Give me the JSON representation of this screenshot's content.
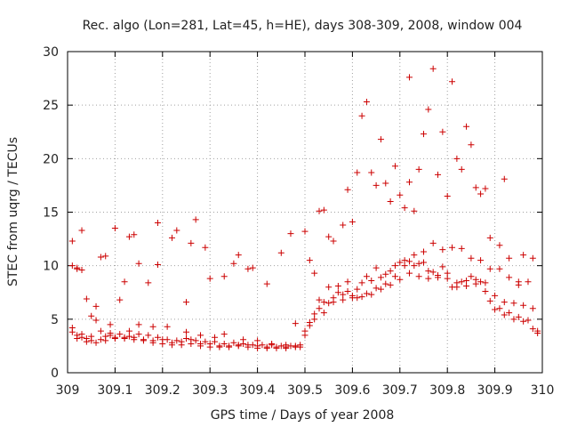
{
  "chart_data": {
    "type": "scatter",
    "title": "Rec. algo (Lon=281, Lat=45, h=HE), days 308-309, 2008, window 004",
    "xlabel": "GPS time / Days of year 2008",
    "ylabel": "STEC from uqrg / TECUs",
    "xlim": [
      309,
      310
    ],
    "ylim": [
      0,
      30
    ],
    "xticks": [
      309,
      309.1,
      309.2,
      309.3,
      309.4,
      309.5,
      309.6,
      309.7,
      309.8,
      309.9,
      310
    ],
    "xtick_labels": [
      "309",
      "309.1",
      "309.2",
      "309.3",
      "309.4",
      "309.5",
      "309.6",
      "309.7",
      "309.8",
      "309.9",
      "310"
    ],
    "yticks": [
      0,
      5,
      10,
      15,
      20,
      25,
      30
    ],
    "ytick_labels": [
      "0",
      "5",
      "10",
      "15",
      "20",
      "25",
      "30"
    ],
    "grid": true,
    "marker": "+",
    "color": "#cc0000",
    "series": [
      {
        "x": [
          309.01,
          309.01,
          309.02,
          309.02,
          309.03,
          309.04,
          309.05,
          309.06,
          309.07,
          309.08,
          309.09,
          309.1,
          309.12,
          309.14,
          309.16,
          309.18,
          309.2,
          309.22,
          309.24,
          309.26,
          309.28,
          309.3,
          309.32,
          309.34,
          309.36,
          309.38,
          309.4,
          309.42,
          309.44,
          309.46,
          309.48,
          309.5,
          309.52,
          309.54,
          309.56,
          309.58,
          309.6,
          309.62,
          309.64,
          309.66,
          309.68,
          309.7,
          309.72,
          309.74,
          309.76,
          309.78,
          309.8,
          309.82,
          309.84,
          309.86,
          309.88,
          309.9,
          309.92,
          309.94,
          309.96,
          309.98,
          309.99,
          309.01,
          309.03,
          309.05,
          309.07,
          309.09,
          309.11,
          309.13,
          309.15,
          309.17,
          309.19,
          309.21,
          309.23,
          309.25,
          309.27,
          309.29,
          309.31,
          309.33,
          309.35,
          309.37,
          309.39,
          309.41,
          309.43,
          309.45,
          309.47,
          309.49,
          309.51,
          309.53,
          309.55,
          309.57,
          309.59,
          309.61,
          309.63,
          309.65,
          309.67,
          309.69,
          309.71,
          309.73,
          309.75,
          309.77,
          309.79,
          309.81,
          309.83,
          309.85,
          309.87,
          309.89,
          309.91,
          309.93,
          309.95,
          309.97,
          309.99,
          309.02,
          309.04,
          309.06,
          309.08,
          309.1,
          309.12,
          309.14,
          309.16,
          309.18,
          309.2,
          309.22,
          309.24,
          309.26,
          309.28,
          309.3,
          309.32,
          309.34,
          309.36,
          309.38,
          309.4,
          309.42,
          309.44,
          309.46,
          309.48,
          309.5,
          309.52,
          309.54,
          309.56,
          309.58,
          309.6,
          309.62,
          309.64,
          309.66,
          309.68,
          309.7,
          309.72,
          309.74,
          309.76,
          309.78,
          309.8,
          309.82,
          309.84,
          309.86,
          309.88,
          309.9,
          309.92,
          309.94,
          309.96,
          309.98,
          309.03,
          309.06,
          309.09,
          309.11,
          309.13,
          309.15,
          309.18,
          309.21,
          309.25,
          309.28,
          309.31,
          309.33,
          309.37,
          309.4,
          309.43,
          309.46,
          309.49,
          309.51,
          309.53,
          309.55,
          309.57,
          309.59,
          309.61,
          309.63,
          309.65,
          309.67,
          309.69,
          309.71,
          309.73,
          309.75,
          309.77,
          309.79,
          309.81,
          309.83,
          309.85,
          309.87,
          309.89,
          309.91,
          309.93,
          309.95,
          309.97,
          309.01,
          309.03,
          309.05,
          309.08,
          309.1,
          309.13,
          309.15,
          309.17,
          309.19,
          309.22,
          309.25,
          309.27,
          309.29,
          309.33,
          309.36,
          309.39,
          309.45,
          309.48,
          309.5,
          309.52,
          309.53,
          309.54,
          309.55,
          309.58,
          309.6,
          309.61,
          309.62,
          309.64,
          309.65,
          309.67,
          309.68,
          309.7,
          309.71,
          309.72,
          309.73,
          309.74,
          309.75,
          309.76,
          309.78,
          309.79,
          309.8,
          309.82,
          309.83,
          309.85,
          309.86,
          309.87,
          309.89,
          309.91,
          309.93,
          309.95,
          309.98,
          309.02,
          309.04,
          309.07,
          309.12,
          309.14,
          309.19,
          309.23,
          309.26,
          309.3,
          309.35,
          309.38,
          309.42,
          309.47,
          309.51,
          309.56,
          309.59,
          309.63,
          309.66,
          309.69,
          309.72,
          309.77,
          309.81,
          309.84,
          309.88,
          309.92,
          309.96
        ],
        "y": [
          3.8,
          12.3,
          9.7,
          3.5,
          13.3,
          3.2,
          3.0,
          6.2,
          3.1,
          3.4,
          3.5,
          3.3,
          3.2,
          3.3,
          3.1,
          2.8,
          2.7,
          2.6,
          2.6,
          2.7,
          2.5,
          2.4,
          2.4,
          2.5,
          2.5,
          2.4,
          2.3,
          2.3,
          2.4,
          2.4,
          2.5,
          3.5,
          5.0,
          5.6,
          6.6,
          6.8,
          7.0,
          7.1,
          7.3,
          7.8,
          8.2,
          8.7,
          9.3,
          9.0,
          8.8,
          8.9,
          9.3,
          8.0,
          8.1,
          8.3,
          7.6,
          5.9,
          5.4,
          5.0,
          4.8,
          4.1,
          3.7,
          4.2,
          3.6,
          3.4,
          3.9,
          4.5,
          3.6,
          3.4,
          3.6,
          3.5,
          3.3,
          3.1,
          3.0,
          3.2,
          3.0,
          2.9,
          2.9,
          2.7,
          2.8,
          2.7,
          2.6,
          2.6,
          2.6,
          2.5,
          2.5,
          2.6,
          4.4,
          6.0,
          6.5,
          7.5,
          7.6,
          7.0,
          7.4,
          7.9,
          8.3,
          9.0,
          10.0,
          10.0,
          10.3,
          9.4,
          9.9,
          8.0,
          8.5,
          9.0,
          8.5,
          6.7,
          6.0,
          5.6,
          5.2,
          4.9,
          3.9,
          3.2,
          2.9,
          2.8,
          3.0,
          3.2,
          3.3,
          3.1,
          3.0,
          3.0,
          3.1,
          2.8,
          2.9,
          3.1,
          2.7,
          2.7,
          2.5,
          2.4,
          2.6,
          2.6,
          2.5,
          2.4,
          2.3,
          2.3,
          2.4,
          3.9,
          5.5,
          6.6,
          7.0,
          7.3,
          7.2,
          8.4,
          8.6,
          8.9,
          9.5,
          10.3,
          10.4,
          10.2,
          9.5,
          9.1,
          8.8,
          8.4,
          8.6,
          8.7,
          8.4,
          7.2,
          6.6,
          6.5,
          6.3,
          6.0,
          3.3,
          4.9,
          3.7,
          6.8,
          3.9,
          4.5,
          4.3,
          4.3,
          3.8,
          3.5,
          3.3,
          3.6,
          3.1,
          3.0,
          2.7,
          2.6,
          2.4,
          4.7,
          6.8,
          8.0,
          8.1,
          8.5,
          7.8,
          9.0,
          9.8,
          9.2,
          10.0,
          10.5,
          11.0,
          11.3,
          12.1,
          11.5,
          11.7,
          11.6,
          10.7,
          10.5,
          9.7,
          9.7,
          8.9,
          8.5,
          8.5,
          10.0,
          9.6,
          5.3,
          10.9,
          13.5,
          12.7,
          10.2,
          8.4,
          10.1,
          12.6,
          6.6,
          14.3,
          11.7,
          9.0,
          11.0,
          9.8,
          11.2,
          4.6,
          13.2,
          9.3,
          15.1,
          15.2,
          12.7,
          13.8,
          14.1,
          18.7,
          24.0,
          18.7,
          17.5,
          17.7,
          16.0,
          16.6,
          15.4,
          17.8,
          15.1,
          19.0,
          22.3,
          24.6,
          18.5,
          22.5,
          16.5,
          20.0,
          19.0,
          21.3,
          17.3,
          16.7,
          12.6,
          11.9,
          10.7,
          8.2,
          10.7,
          9.8,
          6.9,
          10.8,
          8.5,
          12.9,
          14.0,
          13.3,
          12.1,
          8.8,
          10.2,
          9.7,
          8.3,
          13.0,
          10.5,
          12.3,
          17.1,
          25.3,
          21.8,
          19.3,
          27.6,
          28.4,
          27.2,
          23.0,
          17.2,
          18.1,
          11.0
        ]
      }
    ]
  }
}
